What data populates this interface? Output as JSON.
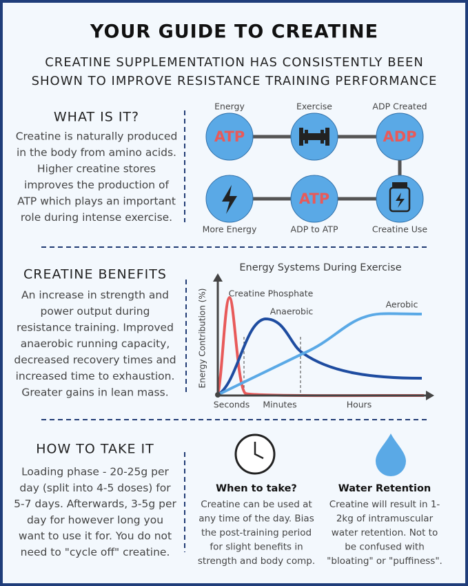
{
  "title": "YOUR GUIDE TO CREATINE",
  "subtitle": [
    "CREATINE SUPPLEMENTATION HAS CONSISTENTLY BEEN",
    "SHOWN TO IMPROVE RESISTANCE TRAINING PERFORMANCE"
  ],
  "what_is_it": {
    "heading": "WHAT IS IT?",
    "lines": [
      "Creatine is naturally produced",
      "in the body from amino acids.",
      "Higher creatine stores",
      "improves the production of",
      "ATP which plays an important",
      "role during intense exercise."
    ]
  },
  "cycle": {
    "nodes": [
      {
        "caption": "Energy",
        "text": "ATP"
      },
      {
        "caption": "Exercise"
      },
      {
        "caption": "ADP Created",
        "text": "ADP"
      },
      {
        "caption": "More Energy"
      },
      {
        "caption": "ADP to ATP",
        "text": "ATP"
      },
      {
        "caption": "Creatine Use"
      }
    ]
  },
  "benefits": {
    "heading": "CREATINE BENEFITS",
    "lines": [
      "An increase in strength and",
      "power output during",
      "resistance training. Improved",
      "anaerobic running capacity,",
      "decreased recovery times and",
      "increased time to exhaustion.",
      "Greater gains in lean mass."
    ]
  },
  "energy_chart": {
    "title": "Energy Systems During Exercise",
    "y_label": "Energy Contribution (%)",
    "curve_labels": [
      "Creatine Phosphate",
      "Anaerobic",
      "Aerobic"
    ],
    "x_labels": [
      "Seconds",
      "Minutes",
      "Hours"
    ]
  },
  "how_to": {
    "heading": "HOW TO TAKE IT",
    "lines": [
      "Loading phase - 20-25g per",
      "day (split into 4-5 doses) for",
      "5-7 days. Afterwards, 3-5g per",
      "day for however long you",
      "want to use it for. You do not",
      "need to \"cycle off\" creatine."
    ]
  },
  "when": {
    "heading": "When to take?",
    "lines": [
      "Creatine can be used at",
      "any time of the day. Bias",
      "the post-training period",
      "for slight benefits in",
      "strength and body comp."
    ]
  },
  "water": {
    "heading": "Water Retention",
    "lines": [
      "Creatine will result in 1-",
      "2kg of intramuscular",
      "water retention. Not to",
      "be confused with",
      "\"bloating\" or \"puffiness\"."
    ]
  }
}
